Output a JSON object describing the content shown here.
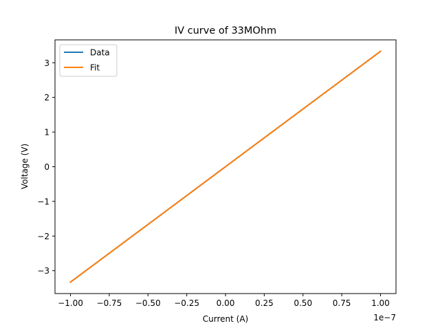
{
  "chart_data": {
    "type": "line",
    "title": "IV curve of 33MOhm",
    "xlabel": "Current (A)",
    "ylabel": "Voltage (V)",
    "x_offset_label": "1e−7",
    "xlim": [
      -1.1e-07,
      1.1e-07
    ],
    "ylim": [
      -3.66,
      3.66
    ],
    "x_ticks": [
      -1e-07,
      -7.5e-08,
      -5e-08,
      -2.5e-08,
      0,
      2.5e-08,
      5e-08,
      7.5e-08,
      1e-07
    ],
    "x_tick_labels": [
      "−1.00",
      "−0.75",
      "−0.50",
      "−0.25",
      "0.00",
      "0.25",
      "0.50",
      "0.75",
      "1.00"
    ],
    "y_ticks": [
      -3,
      -2,
      -1,
      0,
      1,
      2,
      3
    ],
    "y_tick_labels": [
      "−3",
      "−2",
      "−1",
      "0",
      "1",
      "2",
      "3"
    ],
    "grid": false,
    "legend_position": "top-left",
    "series": [
      {
        "name": "Data",
        "color": "#1f77b4",
        "x": [
          -1e-07,
          1e-07
        ],
        "y": [
          -3.33,
          3.33
        ]
      },
      {
        "name": "Fit",
        "color": "#ff7f0e",
        "x": [
          -1e-07,
          1e-07
        ],
        "y": [
          -3.33,
          3.33
        ]
      }
    ]
  }
}
